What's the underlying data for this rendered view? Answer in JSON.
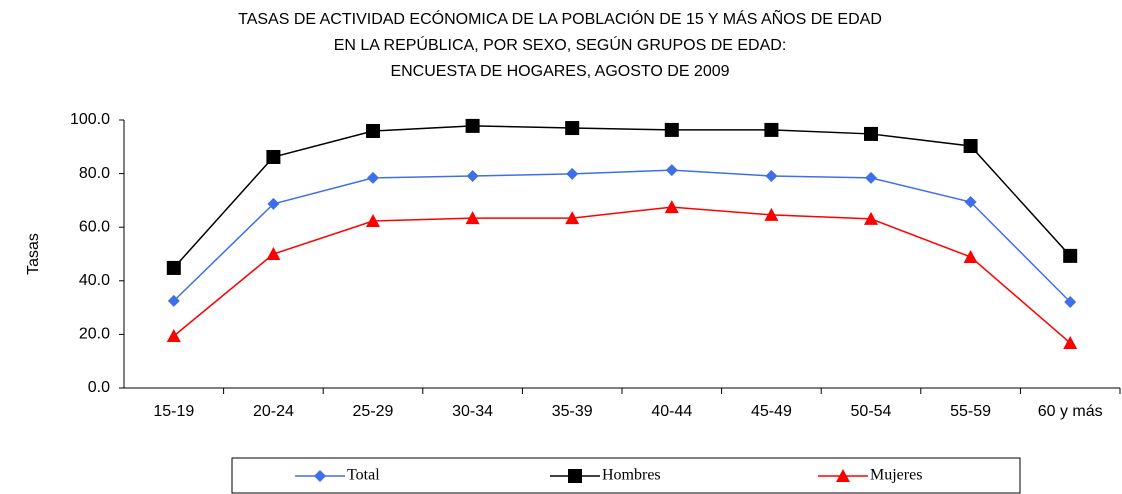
{
  "chart_data": {
    "type": "line",
    "title": [
      "TASAS DE ACTIVIDAD ECÓNOMICA DE LA POBLACIÓN DE 15 Y MÁS AÑOS DE EDAD",
      "EN LA REPÚBLICA, POR SEXO, SEGÚN GRUPOS DE EDAD:",
      "ENCUESTA DE HOGARES, AGOSTO DE 2009"
    ],
    "y_label": "Tasas",
    "categories": [
      "15-19",
      "20-24",
      "25-29",
      "30-34",
      "35-39",
      "40-44",
      "45-49",
      "50-54",
      "55-59",
      "60 y más"
    ],
    "series": [
      {
        "name": "Total",
        "color": "#3f6fe8",
        "marker": "diamond",
        "values": [
          32.5,
          68.7,
          78.4,
          79.1,
          79.9,
          81.3,
          79.1,
          78.4,
          69.4,
          32.1
        ]
      },
      {
        "name": "Hombres",
        "color": "#000000",
        "marker": "square",
        "values": [
          44.8,
          86.2,
          95.9,
          97.8,
          97.0,
          96.3,
          96.3,
          94.8,
          90.3,
          49.3
        ]
      },
      {
        "name": "Mujeres",
        "color": "#ff0000",
        "marker": "triangle",
        "values": [
          19.4,
          50.0,
          62.3,
          63.4,
          63.4,
          67.5,
          64.6,
          63.1,
          48.9,
          16.8
        ]
      }
    ],
    "ylim": [
      0,
      100
    ],
    "yticks": [
      {
        "value": 0,
        "label": "0.0"
      },
      {
        "value": 20,
        "label": "20.0"
      },
      {
        "value": 40,
        "label": "40.0"
      },
      {
        "value": 60,
        "label": "60.0"
      },
      {
        "value": 80,
        "label": "80.0"
      },
      {
        "value": 100,
        "label": "100.0"
      }
    ],
    "grid": false
  }
}
